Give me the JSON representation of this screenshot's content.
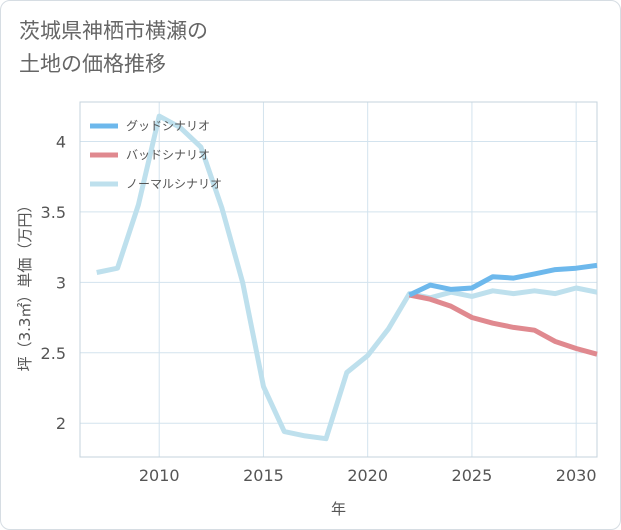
{
  "title_lines": [
    "茨城県神栖市横瀬の",
    "土地の価格推移"
  ],
  "chart_data": {
    "type": "line",
    "xlabel": "年",
    "ylabel": "坪（3.3㎡）単価（万円）",
    "xlim": [
      2006.2,
      2031
    ],
    "ylim": [
      1.76,
      4.28
    ],
    "xticks": [
      2010,
      2015,
      2020,
      2025,
      2030
    ],
    "yticks": [
      2,
      2.5,
      3,
      3.5,
      4
    ],
    "ytick_labels": [
      "2",
      "2.5",
      "3",
      "3.5",
      "4"
    ],
    "grid": true,
    "legend_position": "top-left",
    "series": [
      {
        "name": "グッドシナリオ",
        "color": "#6db8ec",
        "x": [
          2022,
          2023,
          2024,
          2025,
          2026,
          2027,
          2028,
          2029,
          2030,
          2031
        ],
        "y": [
          2.91,
          2.98,
          2.95,
          2.96,
          3.04,
          3.03,
          3.06,
          3.09,
          3.1,
          3.12
        ]
      },
      {
        "name": "バッドシナリオ",
        "color": "#e0898f",
        "x": [
          2022,
          2023,
          2024,
          2025,
          2026,
          2027,
          2028,
          2029,
          2030,
          2031
        ],
        "y": [
          2.91,
          2.88,
          2.83,
          2.75,
          2.71,
          2.68,
          2.66,
          2.58,
          2.53,
          2.49
        ]
      },
      {
        "name": "ノーマルシナリオ",
        "color": "#bee0ed",
        "x": [
          2007,
          2008,
          2009,
          2010,
          2011,
          2012,
          2013,
          2014,
          2015,
          2016,
          2017,
          2018,
          2019,
          2020,
          2021,
          2022,
          2023,
          2024,
          2025,
          2026,
          2027,
          2028,
          2029,
          2030,
          2031
        ],
        "y": [
          3.07,
          3.1,
          3.55,
          4.18,
          4.1,
          3.96,
          3.53,
          3.0,
          2.26,
          1.94,
          1.91,
          1.89,
          2.36,
          2.48,
          2.67,
          2.92,
          2.89,
          2.93,
          2.9,
          2.94,
          2.92,
          2.94,
          2.92,
          2.96,
          2.93
        ]
      }
    ]
  }
}
